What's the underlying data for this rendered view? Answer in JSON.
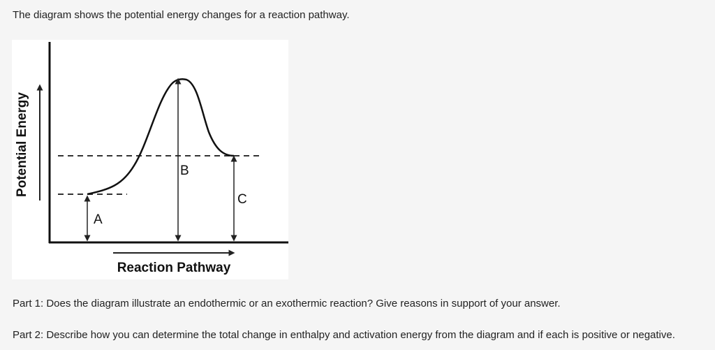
{
  "intro_text": "The diagram shows the potential energy changes for a reaction pathway.",
  "diagram": {
    "y_axis_label": "Potential Energy",
    "x_axis_label": "Reaction Pathway",
    "marker_labels": {
      "a": "A",
      "b": "B",
      "c": "C"
    }
  },
  "questions": {
    "part1": "Part 1: Does the diagram illustrate an endothermic or an exothermic reaction? Give reasons in support of your answer.",
    "part2": "Part 2: Describe how you can determine the total change in enthalpy and activation energy from the diagram and if each is positive or negative."
  }
}
